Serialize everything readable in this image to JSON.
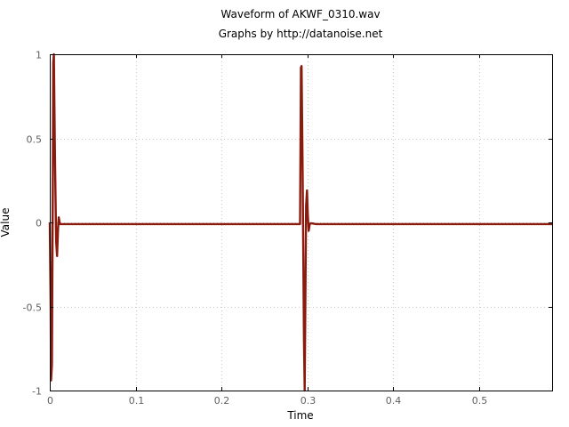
{
  "chart_data": {
    "type": "line",
    "title": "Waveform of AKWF_0310.wav",
    "subtitle": "Graphs by http://datanoise.net",
    "xlabel": "Time",
    "ylabel": "Value",
    "xlim": [
      0,
      0.585
    ],
    "ylim": [
      -1,
      1
    ],
    "x_ticks": [
      0,
      0.1,
      0.2,
      0.3,
      0.4,
      0.5
    ],
    "x_tick_labels": [
      "0",
      "0.1",
      "0.2",
      "0.3",
      "0.4",
      "0.5"
    ],
    "y_ticks": [
      -1,
      -0.5,
      0,
      0.5,
      1
    ],
    "y_tick_labels": [
      "-1",
      "-0.5",
      "0",
      "0.5",
      "1"
    ],
    "grid": true,
    "series": [
      {
        "color": "#8b1a0e",
        "points": [
          [
            0,
            0
          ],
          [
            0.001,
            -0.5
          ],
          [
            0.0015,
            -0.94
          ],
          [
            0.0025,
            -0.85
          ],
          [
            0.0035,
            0.2
          ],
          [
            0.004,
            0.95
          ],
          [
            0.0048,
            1
          ],
          [
            0.006,
            0.4
          ],
          [
            0.0075,
            -0.12
          ],
          [
            0.0085,
            -0.2
          ],
          [
            0.0095,
            -0.05
          ],
          [
            0.0105,
            0.03
          ],
          [
            0.0118,
            -0.01
          ],
          [
            0.014,
            -0.01
          ],
          [
            0.285,
            -0.01
          ],
          [
            0.2915,
            -0.01
          ],
          [
            0.2925,
            0.92
          ],
          [
            0.2932,
            0.93
          ],
          [
            0.2945,
            0.3
          ],
          [
            0.296,
            -0.7
          ],
          [
            0.2968,
            -1
          ],
          [
            0.2985,
            0.1
          ],
          [
            0.2995,
            0.19
          ],
          [
            0.3005,
            0.05
          ],
          [
            0.3015,
            -0.05
          ],
          [
            0.3028,
            -0.01
          ],
          [
            0.3042,
            -0.005
          ],
          [
            0.31,
            -0.01
          ],
          [
            0.585,
            -0.01
          ]
        ]
      }
    ]
  }
}
